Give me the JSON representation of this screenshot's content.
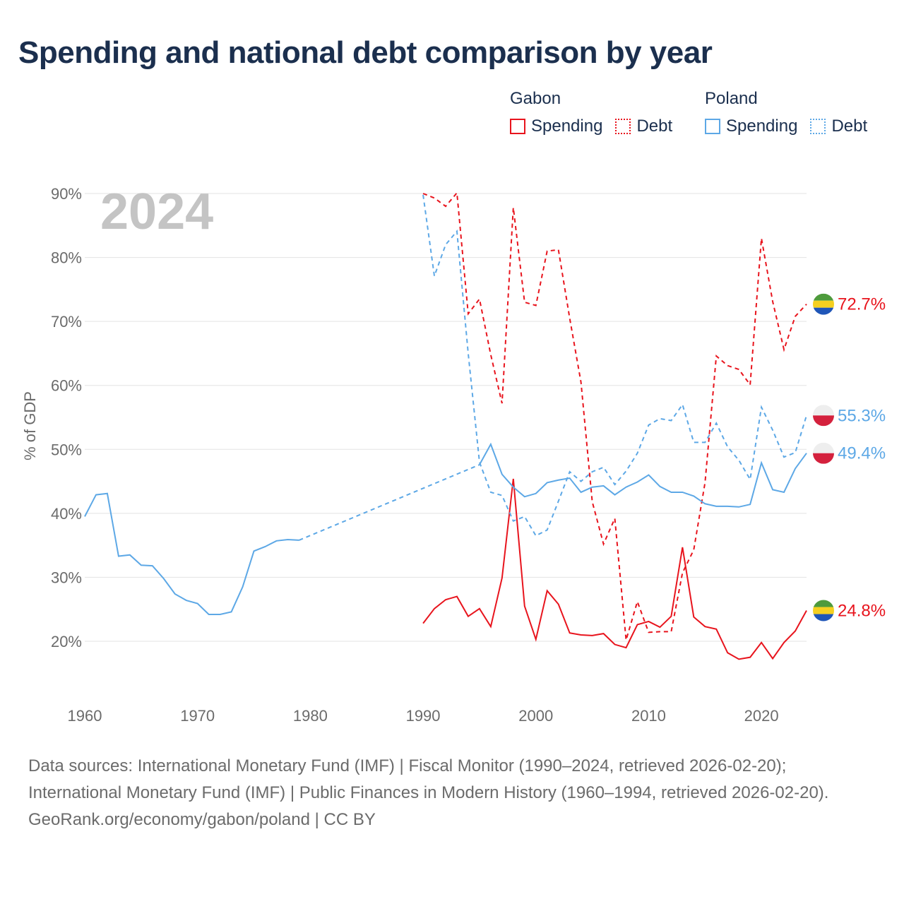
{
  "title": "Spending and national debt comparison by year",
  "legend": {
    "groups": [
      {
        "name": "Gabon",
        "color": "#e8141d",
        "spending_label": "Spending",
        "debt_label": "Debt"
      },
      {
        "name": "Poland",
        "color": "#5da8e6",
        "spending_label": "Spending",
        "debt_label": "Debt"
      }
    ]
  },
  "footer": {
    "sources": "Data sources: International Monetary Fund (IMF) | Fiscal Monitor (1990–2024, retrieved 2026-02-20); International Monetary Fund (IMF) | Public Finances in Modern History (1960–1994, retrieved 2026-02-20).",
    "attribution": "GeoRank.org/economy/gabon/poland | CC BY"
  },
  "chart_data": {
    "type": "line",
    "year_label": "2024",
    "ylabel": "% of GDP",
    "xlim": [
      1960,
      2024
    ],
    "ylim": [
      14,
      92
    ],
    "xticks": [
      1960,
      1970,
      1980,
      1990,
      2000,
      2010,
      2020
    ],
    "yticks": [
      20,
      30,
      40,
      50,
      60,
      70,
      80,
      90
    ],
    "ytick_suffix": "%",
    "series": [
      {
        "name": "Gabon Debt",
        "country": "Gabon",
        "color": "#e8141d",
        "dashed": true,
        "end_label": "72.7%",
        "flag": "gabon",
        "x": [
          1990,
          1991,
          1992,
          1993,
          1994,
          1995,
          1996,
          1997,
          1998,
          1999,
          2000,
          2001,
          2002,
          2003,
          2004,
          2005,
          2006,
          2007,
          2008,
          2009,
          2010,
          2011,
          2012,
          2013,
          2014,
          2015,
          2016,
          2017,
          2018,
          2019,
          2020,
          2021,
          2022,
          2023,
          2024
        ],
        "values": [
          90,
          89.3,
          88,
          90.1,
          71.2,
          73.5,
          64.8,
          57.2,
          87.8,
          73,
          72.5,
          81,
          81.2,
          70.5,
          60.5,
          41.8,
          35.2,
          39.2,
          20.2,
          26.2,
          21.4,
          21.5,
          21.5,
          30.7,
          34.3,
          44.8,
          64.6,
          63.1,
          62.5,
          60.1,
          83,
          73.1,
          65.6,
          70.8,
          72.7
        ]
      },
      {
        "name": "Gabon Spending",
        "country": "Gabon",
        "color": "#e8141d",
        "dashed": false,
        "end_label": "24.8%",
        "flag": "gabon",
        "x": [
          1990,
          1991,
          1992,
          1993,
          1994,
          1995,
          1996,
          1997,
          1998,
          1999,
          2000,
          2001,
          2002,
          2003,
          2004,
          2005,
          2006,
          2007,
          2008,
          2009,
          2010,
          2011,
          2012,
          2013,
          2014,
          2015,
          2016,
          2017,
          2018,
          2019,
          2020,
          2021,
          2022,
          2023,
          2024
        ],
        "values": [
          22.8,
          25.1,
          26.5,
          27,
          23.9,
          25.1,
          22.3,
          29.9,
          45.4,
          25.5,
          20.3,
          27.9,
          25.8,
          21.3,
          21,
          20.9,
          21.2,
          19.5,
          19,
          22.6,
          23.1,
          22.2,
          23.9,
          34.7,
          23.8,
          22.3,
          21.9,
          18.2,
          17.2,
          17.5,
          19.8,
          17.3,
          19.8,
          21.6,
          24.8
        ]
      },
      {
        "name": "Poland Debt",
        "country": "Poland",
        "color": "#5da8e6",
        "dashed": true,
        "end_label": "55.3%",
        "flag": "poland",
        "x": [
          1990,
          1991,
          1992,
          1993,
          1994,
          1995,
          1996,
          1997,
          1998,
          1999,
          2000,
          2001,
          2002,
          2003,
          2004,
          2005,
          2006,
          2007,
          2008,
          2009,
          2010,
          2011,
          2012,
          2013,
          2014,
          2015,
          2016,
          2017,
          2018,
          2019,
          2020,
          2021,
          2022,
          2023,
          2024
        ],
        "values": [
          89.8,
          77.1,
          82,
          84.1,
          65,
          48,
          43.3,
          42.8,
          38.8,
          39.5,
          36.5,
          37.4,
          41.9,
          46.5,
          45,
          46.5,
          47.2,
          44.5,
          46.6,
          49.4,
          53.8,
          54.8,
          54.5,
          57,
          51.1,
          51.1,
          54.1,
          50.4,
          48.3,
          45.3,
          56.6,
          53,
          48.8,
          49.5,
          55.3
        ]
      },
      {
        "name": "Poland Spending",
        "country": "Poland",
        "color": "#5da8e6",
        "dashed": false,
        "end_label": "49.4%",
        "flag": "poland",
        "x": [
          1960,
          1961,
          1962,
          1963,
          1964,
          1965,
          1966,
          1967,
          1968,
          1969,
          1970,
          1971,
          1972,
          1973,
          1974,
          1975,
          1976,
          1977,
          1978,
          1979,
          1995,
          1996,
          1997,
          1998,
          1999,
          2000,
          2001,
          2002,
          2003,
          2004,
          2005,
          2006,
          2007,
          2008,
          2009,
          2010,
          2011,
          2012,
          2013,
          2014,
          2015,
          2016,
          2017,
          2018,
          2019,
          2020,
          2021,
          2022,
          2023,
          2024
        ],
        "values": [
          39.5,
          42.9,
          43.1,
          33.3,
          33.5,
          31.9,
          31.8,
          29.8,
          27.4,
          26.4,
          25.9,
          24.2,
          24.2,
          24.6,
          28.5,
          34.1,
          34.8,
          35.7,
          35.9,
          35.8,
          47.6,
          50.8,
          46.1,
          44.1,
          42.6,
          43.1,
          44.8,
          45.2,
          45.5,
          43.3,
          44.1,
          44.3,
          42.9,
          44.1,
          44.9,
          46,
          44.2,
          43.3,
          43.3,
          42.7,
          41.5,
          41.1,
          41.1,
          41,
          41.4,
          47.9,
          43.7,
          43.3,
          47,
          49.4
        ],
        "gap_after": 1979
      }
    ]
  }
}
